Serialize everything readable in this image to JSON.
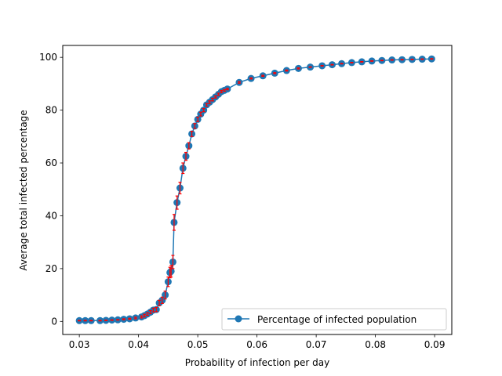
{
  "chart_data": {
    "type": "line",
    "xlabel": "Probability of infection per day",
    "ylabel": "Average total infected percentage",
    "xlim": [
      0.0272,
      0.0929
    ],
    "ylim": [
      -4.95,
      104.5
    ],
    "xticks": [
      0.03,
      0.04,
      0.05,
      0.06,
      0.07,
      0.08,
      0.09
    ],
    "xtick_labels": [
      "0.03",
      "0.04",
      "0.05",
      "0.06",
      "0.07",
      "0.08",
      "0.09"
    ],
    "yticks": [
      0,
      20,
      40,
      60,
      80,
      100
    ],
    "ytick_labels": [
      "0",
      "20",
      "40",
      "60",
      "80",
      "100"
    ],
    "grid": false,
    "legend_position": "lower right",
    "colors": {
      "line": "#1f77b4",
      "marker": "#1f77b4",
      "errorbar": "#ff0000"
    },
    "series": [
      {
        "name": "Percentage of infected population",
        "x": [
          0.03,
          0.031,
          0.032,
          0.0335,
          0.0345,
          0.0355,
          0.0365,
          0.0375,
          0.0385,
          0.0395,
          0.0405,
          0.041,
          0.0415,
          0.042,
          0.0425,
          0.043,
          0.0435,
          0.044,
          0.0445,
          0.045,
          0.0453,
          0.0455,
          0.0458,
          0.046,
          0.0465,
          0.047,
          0.0475,
          0.048,
          0.0485,
          0.049,
          0.0495,
          0.05,
          0.0505,
          0.051,
          0.0515,
          0.052,
          0.0525,
          0.053,
          0.0535,
          0.054,
          0.0545,
          0.055,
          0.057,
          0.059,
          0.061,
          0.063,
          0.065,
          0.067,
          0.069,
          0.071,
          0.0727,
          0.0743,
          0.076,
          0.0777,
          0.0794,
          0.0811,
          0.0828,
          0.0845,
          0.0862,
          0.0879,
          0.0895
        ],
        "y": [
          0.3,
          0.3,
          0.3,
          0.3,
          0.4,
          0.5,
          0.6,
          0.8,
          1.0,
          1.3,
          1.7,
          2.2,
          2.8,
          3.5,
          4.3,
          4.5,
          7.0,
          8.0,
          10.0,
          15.0,
          18.5,
          19.0,
          22.5,
          37.5,
          45.0,
          50.5,
          58.0,
          62.5,
          66.5,
          71.0,
          74.0,
          76.5,
          78.5,
          80.0,
          82.0,
          83.0,
          84.0,
          85.0,
          86.0,
          87.0,
          87.5,
          88.0,
          90.5,
          92.0,
          93.0,
          94.0,
          95.0,
          95.8,
          96.3,
          96.8,
          97.2,
          97.6,
          98.0,
          98.3,
          98.6,
          98.8,
          99.0,
          99.1,
          99.2,
          99.3,
          99.4
        ],
        "error": [
          0.1,
          0.1,
          0.1,
          0.1,
          0.1,
          0.1,
          0.1,
          0.2,
          0.2,
          0.3,
          0.4,
          0.5,
          0.5,
          0.6,
          0.7,
          0.8,
          1.0,
          1.2,
          1.5,
          1.8,
          2.0,
          2.2,
          2.5,
          3.0,
          2.5,
          2.2,
          2.0,
          1.5,
          1.2,
          1.0,
          0.9,
          0.8,
          0.7,
          0.6,
          0.5,
          0.5,
          0.5,
          0.4,
          0.4,
          0.4,
          0.3,
          0.3,
          0.3,
          0.2,
          0.2,
          0.2,
          0.2,
          0.2,
          0.1,
          0.1,
          0.1,
          0.1,
          0.1,
          0.1,
          0.1,
          0.1,
          0.1,
          0.1,
          0.1,
          0.1,
          0.1
        ]
      }
    ]
  }
}
